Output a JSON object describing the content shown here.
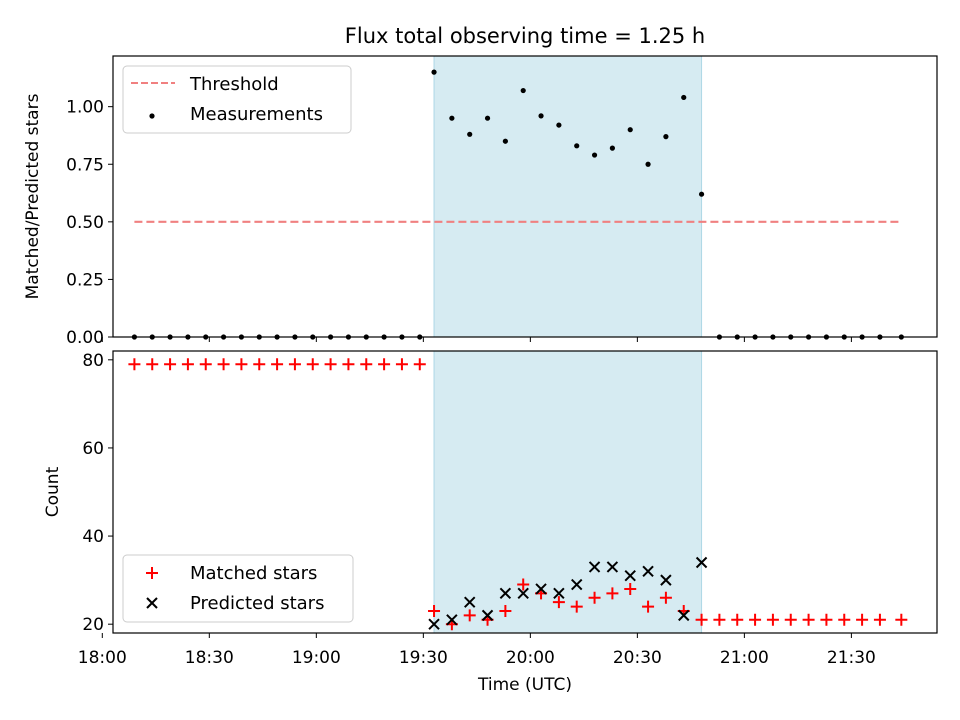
{
  "title": "Flux total observing time = 1.25 h",
  "colors": {
    "threshold": "#f08080",
    "measurement": "#000000",
    "matched": "#ff0000",
    "predicted": "#000000",
    "span": "#add8e6"
  },
  "chart_data": [
    {
      "type": "scatter",
      "panel": "top",
      "ylabel": "Matched/Predicted stars",
      "xlabel": "",
      "xlim": [
        "18:03",
        "21:54"
      ],
      "ylim": [
        0,
        1.22
      ],
      "yticks": [
        0.0,
        0.25,
        0.5,
        0.75,
        1.0
      ],
      "ytick_labels": [
        "0.00",
        "0.25",
        "0.50",
        "0.75",
        "1.00"
      ],
      "grid": false,
      "legend": "upper-left",
      "shaded_span": [
        "19:33",
        "20:48"
      ],
      "series": [
        {
          "name": "Threshold",
          "style": "dashed-line",
          "x": [
            "18:09",
            "21:44"
          ],
          "y": [
            0.5,
            0.5
          ]
        },
        {
          "name": "Measurements",
          "style": "dot",
          "x": [
            "18:09",
            "18:14",
            "18:19",
            "18:24",
            "18:29",
            "18:34",
            "18:39",
            "18:44",
            "18:49",
            "18:54",
            "18:59",
            "19:04",
            "19:09",
            "19:14",
            "19:19",
            "19:24",
            "19:29",
            "19:33",
            "19:38",
            "19:43",
            "19:48",
            "19:53",
            "19:58",
            "20:03",
            "20:08",
            "20:13",
            "20:18",
            "20:23",
            "20:28",
            "20:33",
            "20:38",
            "20:43",
            "20:48",
            "20:53",
            "20:58",
            "21:03",
            "21:08",
            "21:13",
            "21:18",
            "21:23",
            "21:28",
            "21:33",
            "21:38",
            "21:44"
          ],
          "y": [
            0,
            0,
            0,
            0,
            0,
            0,
            0,
            0,
            0,
            0,
            0,
            0,
            0,
            0,
            0,
            0,
            0,
            1.15,
            0.95,
            0.88,
            0.95,
            0.85,
            1.07,
            0.96,
            0.92,
            0.83,
            0.79,
            0.82,
            0.9,
            0.75,
            0.87,
            1.04,
            0.62,
            0,
            0,
            0,
            0,
            0,
            0,
            0,
            0,
            0,
            0,
            0
          ]
        }
      ]
    },
    {
      "type": "scatter",
      "panel": "bottom",
      "ylabel": "Count",
      "xlabel": "Time (UTC)",
      "xlim": [
        "18:03",
        "21:54"
      ],
      "ylim": [
        18,
        82
      ],
      "yticks": [
        20,
        40,
        60,
        80
      ],
      "ytick_labels": [
        "20",
        "40",
        "60",
        "80"
      ],
      "xticks": [
        "18:00",
        "18:30",
        "19:00",
        "19:30",
        "20:00",
        "20:30",
        "21:00",
        "21:30"
      ],
      "grid": false,
      "legend": "lower-left",
      "shaded_span": [
        "19:33",
        "20:48"
      ],
      "series": [
        {
          "name": "Matched stars",
          "style": "plus",
          "x": [
            "18:09",
            "18:14",
            "18:19",
            "18:24",
            "18:29",
            "18:34",
            "18:39",
            "18:44",
            "18:49",
            "18:54",
            "18:59",
            "19:04",
            "19:09",
            "19:14",
            "19:19",
            "19:24",
            "19:29",
            "19:33",
            "19:38",
            "19:43",
            "19:48",
            "19:53",
            "19:58",
            "20:03",
            "20:08",
            "20:13",
            "20:18",
            "20:23",
            "20:28",
            "20:33",
            "20:38",
            "20:43",
            "20:48",
            "20:53",
            "20:58",
            "21:03",
            "21:08",
            "21:13",
            "21:18",
            "21:23",
            "21:28",
            "21:33",
            "21:38",
            "21:44"
          ],
          "y": [
            79,
            79,
            79,
            79,
            79,
            79,
            79,
            79,
            79,
            79,
            79,
            79,
            79,
            79,
            79,
            79,
            79,
            23,
            20,
            22,
            21,
            23,
            29,
            27,
            25,
            24,
            26,
            27,
            28,
            24,
            26,
            23,
            21,
            21,
            21,
            21,
            21,
            21,
            21,
            21,
            21,
            21,
            21,
            21
          ]
        },
        {
          "name": "Predicted stars",
          "style": "x",
          "x": [
            "19:33",
            "19:38",
            "19:43",
            "19:48",
            "19:53",
            "19:58",
            "20:03",
            "20:08",
            "20:13",
            "20:18",
            "20:23",
            "20:28",
            "20:33",
            "20:38",
            "20:43",
            "20:48"
          ],
          "y": [
            20,
            21,
            25,
            22,
            27,
            27,
            28,
            27,
            29,
            33,
            33,
            31,
            32,
            30,
            22,
            34
          ]
        }
      ]
    }
  ]
}
